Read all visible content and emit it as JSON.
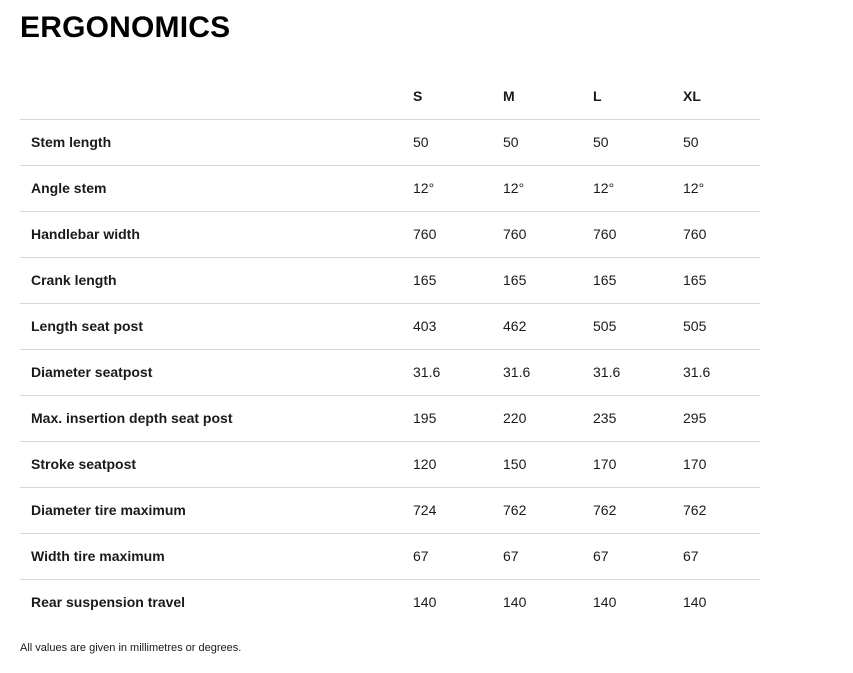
{
  "page": {
    "title": "ERGONOMICS",
    "footnote": "All values are given in millimetres or degrees."
  },
  "table": {
    "columns": [
      "S",
      "M",
      "L",
      "XL"
    ],
    "rows": [
      {
        "label": "Stem length",
        "values": [
          "50",
          "50",
          "50",
          "50"
        ]
      },
      {
        "label": "Angle stem",
        "values": [
          "12°",
          "12°",
          "12°",
          "12°"
        ]
      },
      {
        "label": "Handlebar width",
        "values": [
          "760",
          "760",
          "760",
          "760"
        ]
      },
      {
        "label": "Crank length",
        "values": [
          "165",
          "165",
          "165",
          "165"
        ]
      },
      {
        "label": "Length seat post",
        "values": [
          "403",
          "462",
          "505",
          "505"
        ]
      },
      {
        "label": "Diameter seatpost",
        "values": [
          "31.6",
          "31.6",
          "31.6",
          "31.6"
        ]
      },
      {
        "label": "Max. insertion depth seat post",
        "values": [
          "195",
          "220",
          "235",
          "295"
        ]
      },
      {
        "label": "Stroke seatpost",
        "values": [
          "120",
          "150",
          "170",
          "170"
        ]
      },
      {
        "label": "Diameter tire maximum",
        "values": [
          "724",
          "762",
          "762",
          "762"
        ]
      },
      {
        "label": "Width tire maximum",
        "values": [
          "67",
          "67",
          "67",
          "67"
        ]
      },
      {
        "label": "Rear suspension travel",
        "values": [
          "140",
          "140",
          "140",
          "140"
        ]
      }
    ]
  },
  "colors": {
    "text": "#1a1a1a",
    "title": "#000000",
    "divider": "#d7d7d7",
    "background": "#ffffff"
  }
}
